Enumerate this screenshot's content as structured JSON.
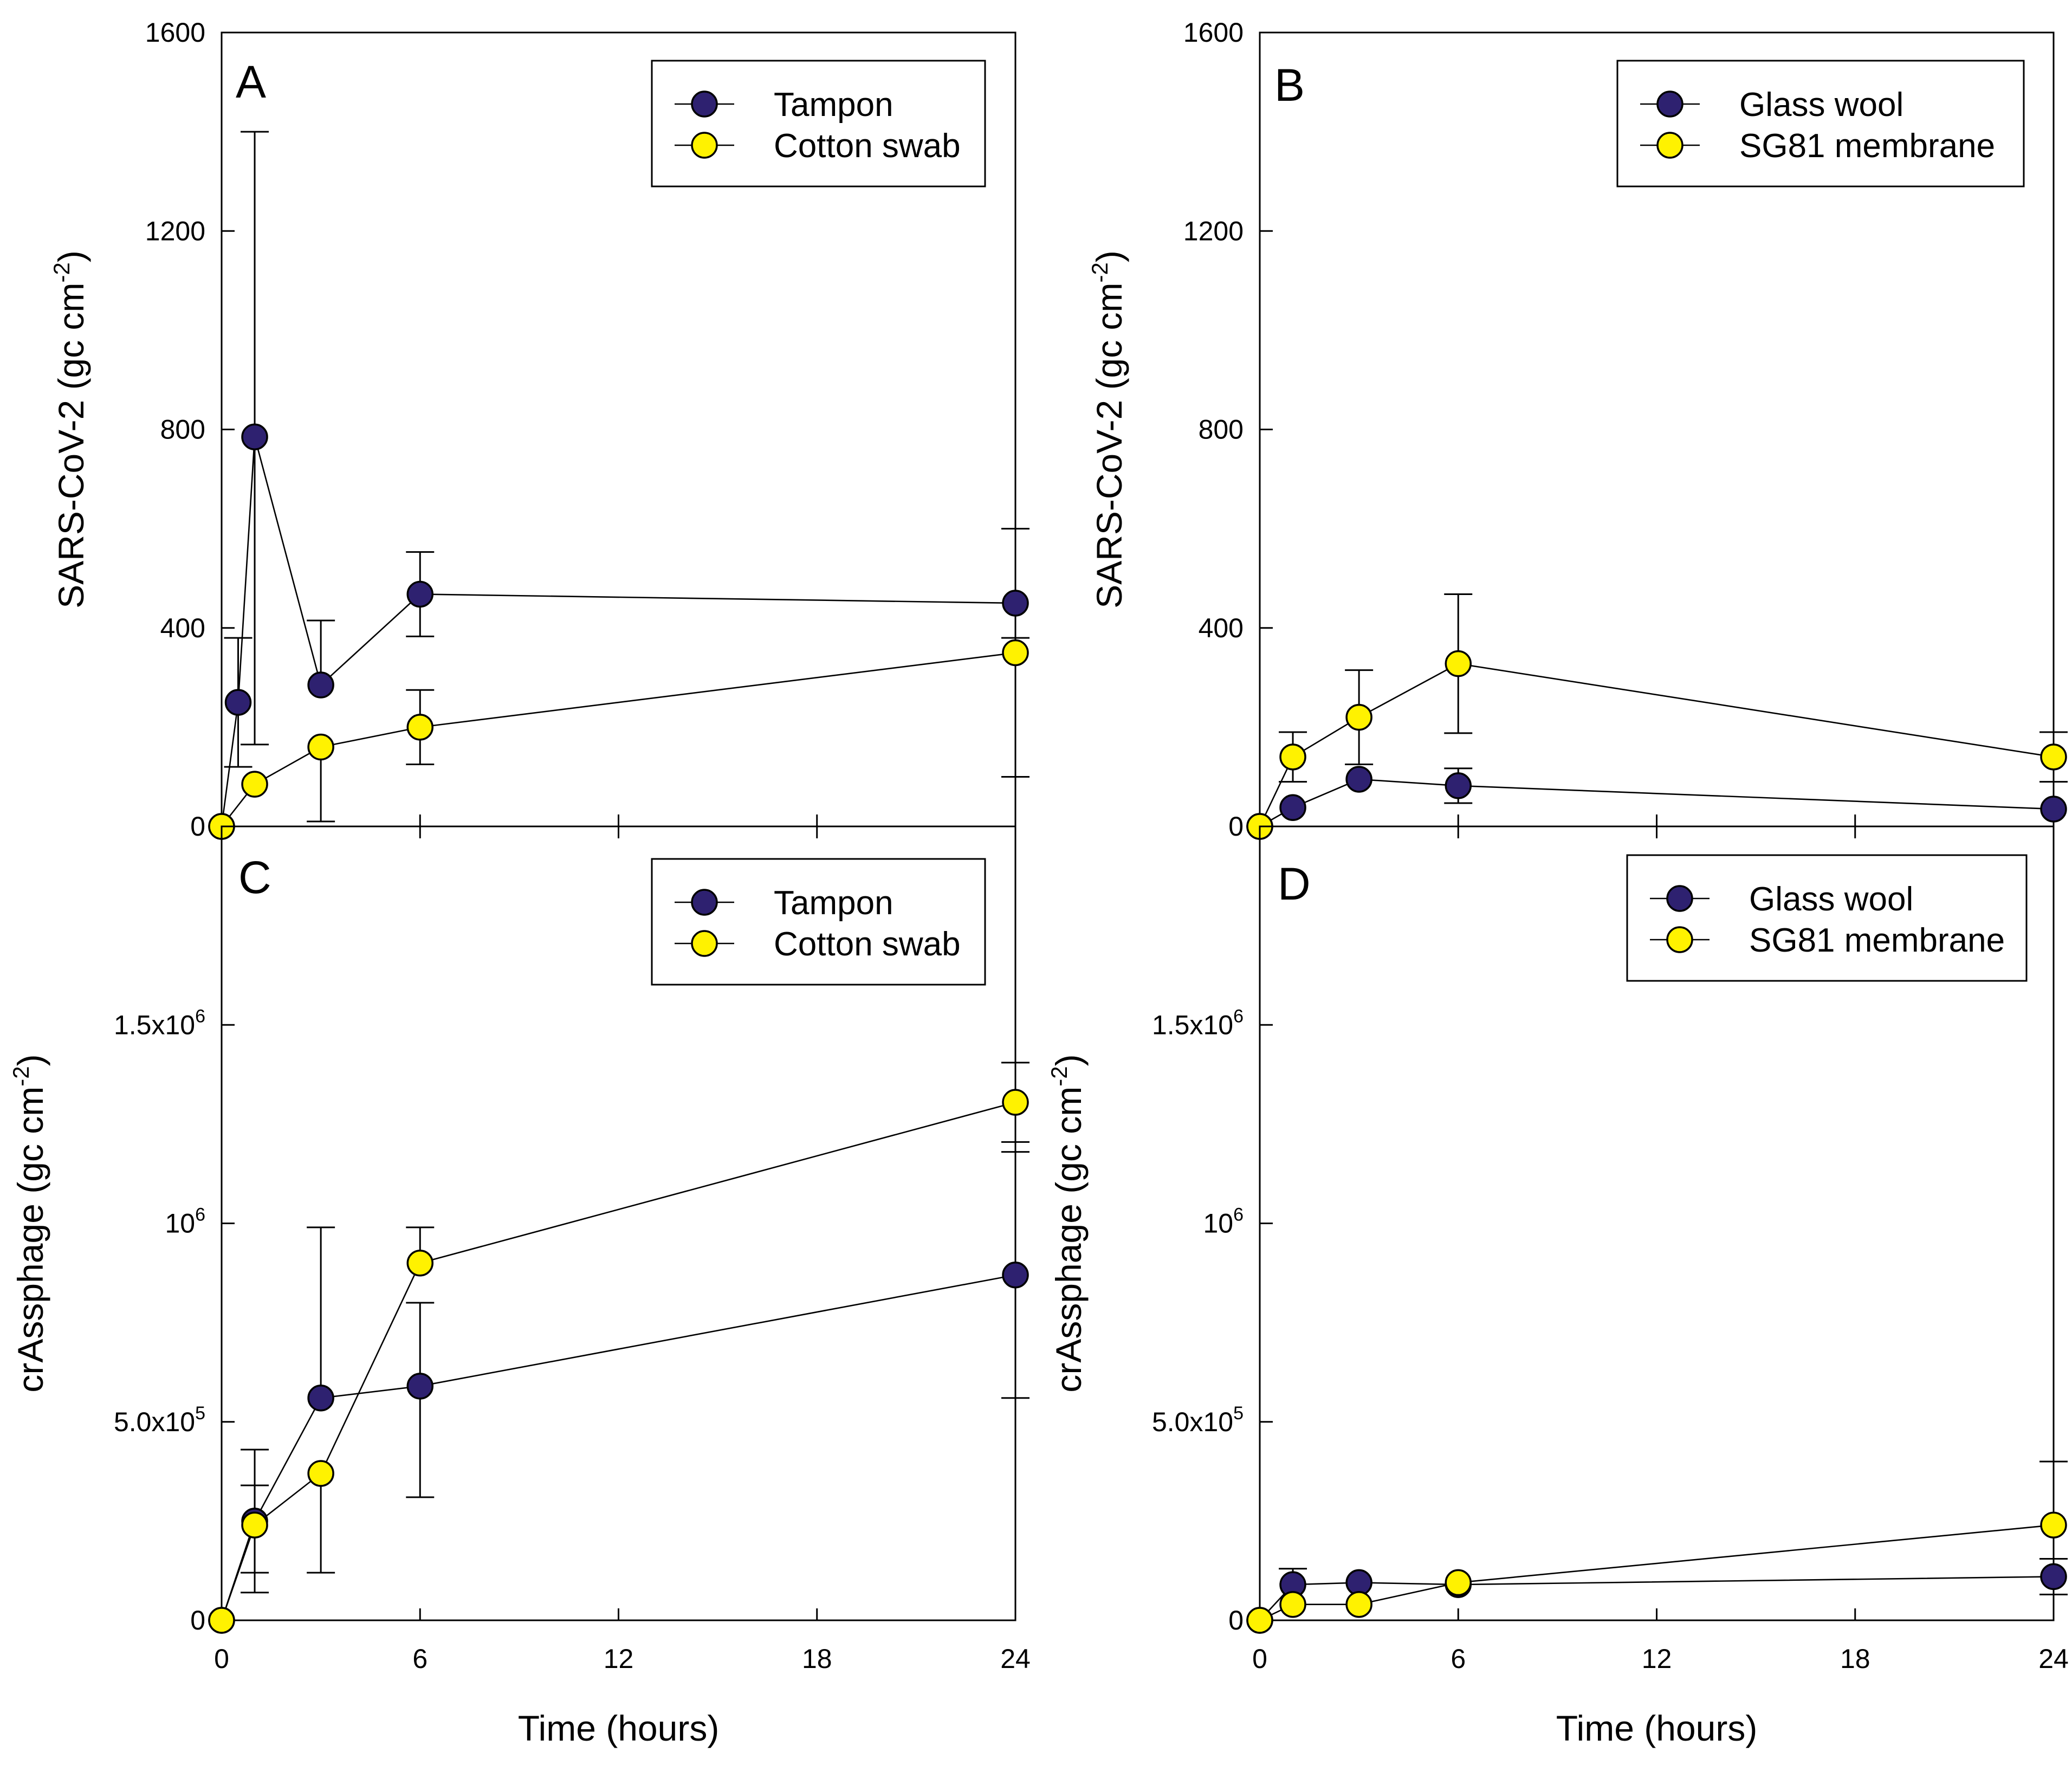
{
  "chart_data": [
    {
      "type": "line",
      "panel": "A",
      "ylabel": "SARS-CoV-2 (gc cm",
      "ylabel_sup": "-2",
      "ylabel_end": ")",
      "ylim": [
        0,
        1600
      ],
      "yticks": [
        0,
        400,
        800,
        1200,
        1600
      ],
      "ytick_labels": [
        "0",
        "400",
        "800",
        "1200",
        "1600"
      ],
      "xlim": [
        0,
        24
      ],
      "xticks": [
        0,
        6,
        12,
        18,
        24
      ],
      "xtick_labels": [],
      "xlabel": "",
      "legend_position": "top-right",
      "series": [
        {
          "name": "Tampon",
          "color": "#2e2170",
          "x": [
            0,
            0.5,
            1,
            3,
            6,
            24
          ],
          "y": [
            0,
            250,
            785,
            285,
            468,
            450
          ],
          "err_low": [
            0,
            130,
            620,
            0,
            85,
            0
          ],
          "err_high": [
            0,
            130,
            615,
            130,
            85,
            150
          ]
        },
        {
          "name": "Cotton swab",
          "color": "#fff200",
          "x": [
            0,
            1,
            3,
            6,
            24
          ],
          "y": [
            0,
            85,
            160,
            200,
            350
          ],
          "err_low": [
            0,
            0,
            150,
            75,
            250
          ],
          "err_high": [
            0,
            0,
            0,
            75,
            30
          ]
        }
      ]
    },
    {
      "type": "line",
      "panel": "B",
      "ylabel": "SARS-CoV-2 (gc cm",
      "ylabel_sup": "-2",
      "ylabel_end": ")",
      "ylim": [
        0,
        1600
      ],
      "yticks": [
        0,
        400,
        800,
        1200,
        1600
      ],
      "ytick_labels": [
        "0",
        "400",
        "800",
        "1200",
        "1600"
      ],
      "xlim": [
        0,
        24
      ],
      "xticks": [
        0,
        6,
        12,
        18,
        24
      ],
      "xtick_labels": [],
      "xlabel": "",
      "legend_position": "top-right",
      "series": [
        {
          "name": "Glass wool",
          "color": "#2e2170",
          "x": [
            0,
            1,
            3,
            6,
            24
          ],
          "y": [
            0,
            38,
            95,
            82,
            35
          ],
          "err_low": [
            0,
            0,
            0,
            35,
            0
          ],
          "err_high": [
            0,
            0,
            0,
            35,
            0
          ]
        },
        {
          "name": "SG81 membrane",
          "color": "#fff200",
          "x": [
            0,
            1,
            3,
            6,
            24
          ],
          "y": [
            0,
            140,
            220,
            328,
            140
          ],
          "err_low": [
            0,
            50,
            95,
            140,
            50
          ],
          "err_high": [
            0,
            50,
            95,
            140,
            50
          ]
        }
      ]
    },
    {
      "type": "line",
      "panel": "C",
      "ylabel": "crAssphage (gc cm",
      "ylabel_sup": "-2",
      "ylabel_end": ")",
      "ylim": [
        0,
        2000000
      ],
      "yticks": [
        0,
        500000,
        1000000,
        1500000
      ],
      "ytick_labels": [
        {
          "base": "0",
          "sup": ""
        },
        {
          "base": "5.0x10",
          "sup": "5"
        },
        {
          "base": "10",
          "sup": "6"
        },
        {
          "base": "1.5x10",
          "sup": "6"
        }
      ],
      "xlim": [
        0,
        24
      ],
      "xticks": [
        0,
        6,
        12,
        18,
        24
      ],
      "xtick_labels": [
        "0",
        "6",
        "12",
        "18",
        "24"
      ],
      "xlabel": "Time (hours)",
      "legend_position": "top-right",
      "series": [
        {
          "name": "Tampon",
          "color": "#2e2170",
          "x": [
            0,
            1,
            3,
            6,
            24
          ],
          "y": [
            0,
            250000,
            560000,
            590000,
            870000
          ],
          "err_low": [
            0,
            130000,
            0,
            280000,
            310000
          ],
          "err_high": [
            0,
            180000,
            430000,
            210000,
            310000
          ]
        },
        {
          "name": "Cotton swab",
          "color": "#fff200",
          "x": [
            0,
            1,
            3,
            6,
            24
          ],
          "y": [
            0,
            240000,
            370000,
            900000,
            1305000
          ],
          "err_low": [
            0,
            170000,
            250000,
            0,
            100000
          ],
          "err_high": [
            0,
            100000,
            0,
            90000,
            100000
          ]
        }
      ]
    },
    {
      "type": "line",
      "panel": "D",
      "ylabel": "crAssphage (gc cm",
      "ylabel_sup": "-2",
      "ylabel_end": ")",
      "ylim": [
        0,
        2000000
      ],
      "yticks": [
        0,
        500000,
        1000000,
        1500000
      ],
      "ytick_labels": [
        {
          "base": "0",
          "sup": ""
        },
        {
          "base": "5.0x10",
          "sup": "5"
        },
        {
          "base": "10",
          "sup": "6"
        },
        {
          "base": "1.5x10",
          "sup": "6"
        }
      ],
      "xlim": [
        0,
        24
      ],
      "xticks": [
        0,
        6,
        12,
        18,
        24
      ],
      "xtick_labels": [
        "0",
        "6",
        "12",
        "18",
        "24"
      ],
      "xlabel": "Time (hours)",
      "legend_position": "top-right",
      "series": [
        {
          "name": "Glass wool",
          "color": "#2e2170",
          "x": [
            0,
            1,
            3,
            6,
            24
          ],
          "y": [
            0,
            90000,
            95000,
            90000,
            110000
          ],
          "err_low": [
            0,
            0,
            0,
            0,
            45000
          ],
          "err_high": [
            0,
            40000,
            0,
            0,
            45000
          ]
        },
        {
          "name": "SG81 membrane",
          "color": "#fff200",
          "x": [
            0,
            1,
            3,
            6,
            24
          ],
          "y": [
            0,
            40000,
            40000,
            95000,
            240000
          ],
          "err_low": [
            0,
            0,
            0,
            0,
            0
          ],
          "err_high": [
            0,
            0,
            0,
            0,
            160000
          ]
        }
      ]
    }
  ]
}
